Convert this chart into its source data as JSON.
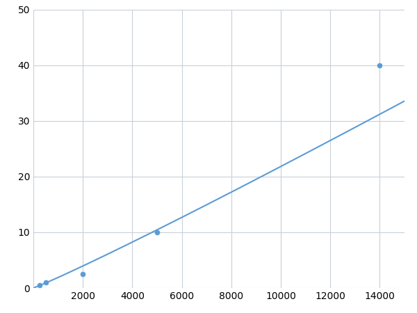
{
  "x_points": [
    250,
    500,
    2000,
    5000,
    14000
  ],
  "y_points": [
    0.5,
    1.0,
    2.5,
    10.0,
    40.0
  ],
  "line_color": "#5b9bd5",
  "marker_color": "#5b9bd5",
  "marker_size": 5,
  "line_width": 1.5,
  "xlim": [
    0,
    15000
  ],
  "ylim": [
    0,
    50
  ],
  "xticks": [
    0,
    2000,
    4000,
    6000,
    8000,
    10000,
    12000,
    14000
  ],
  "yticks": [
    0,
    10,
    20,
    30,
    40,
    50
  ],
  "xtick_labels": [
    "",
    "2000",
    "4000",
    "6000",
    "8000",
    "10000",
    "12000",
    "14000"
  ],
  "ytick_labels": [
    "0",
    "10",
    "20",
    "30",
    "40",
    "50"
  ],
  "grid_color": "#c8d0d8",
  "background_color": "#ffffff",
  "figure_bg": "#ffffff",
  "tick_fontsize": 10
}
